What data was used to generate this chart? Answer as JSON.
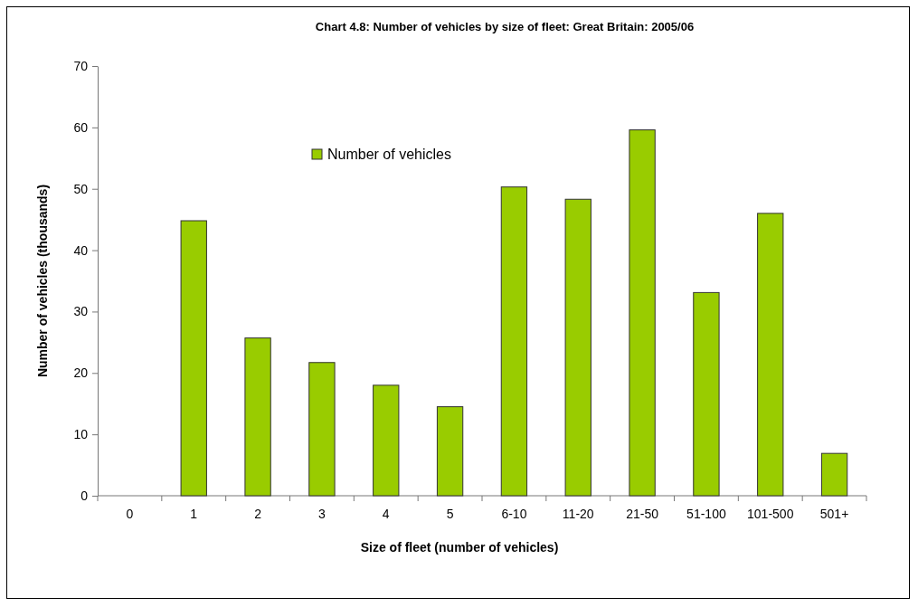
{
  "chart_data": {
    "type": "bar",
    "title": "Chart 4.8: Number of vehicles by size of fleet: Great Britain: 2005/06",
    "xlabel": "Size of fleet (number of vehicles)",
    "ylabel": "Number of vehicles (thousands)",
    "categories": [
      "0",
      "1",
      "2",
      "3",
      "4",
      "5",
      "6-10",
      "11-20",
      "21-50",
      "51-100",
      "101-500",
      "501+"
    ],
    "series": [
      {
        "name": "Number of vehicles",
        "color": "#99cc00",
        "values": [
          null,
          44.8,
          25.7,
          21.7,
          18.0,
          14.5,
          50.3,
          48.3,
          59.6,
          33.1,
          46.0,
          6.9
        ]
      }
    ],
    "ylim": [
      0,
      70
    ],
    "yticks": [
      0,
      10,
      20,
      30,
      40,
      50,
      60,
      70
    ],
    "grid": false,
    "legend": "top"
  }
}
